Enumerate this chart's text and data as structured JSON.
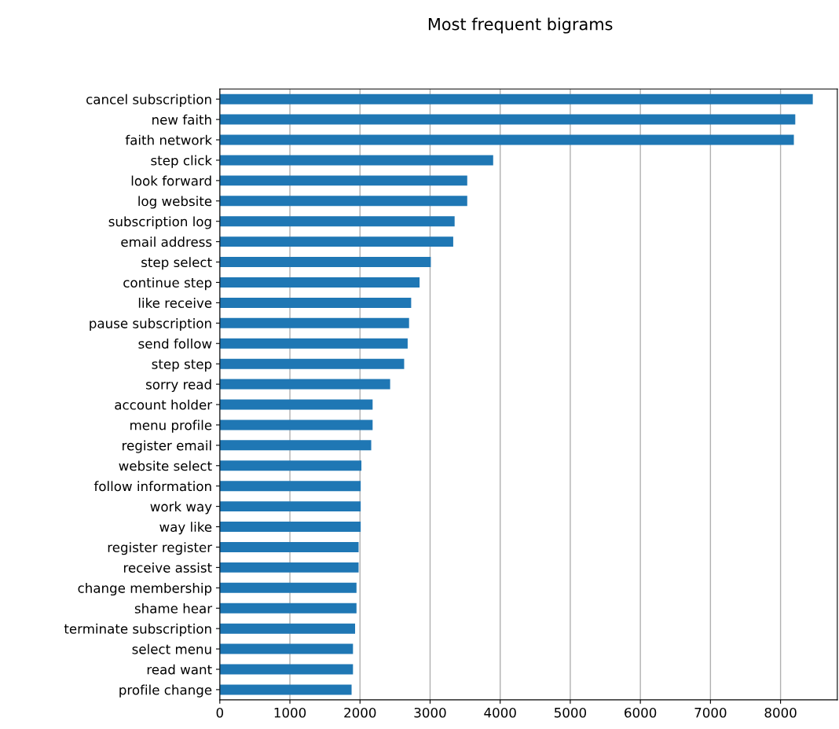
{
  "chart_data": {
    "type": "bar",
    "orientation": "horizontal",
    "title": "Most frequent bigrams",
    "categories": [
      "cancel subscription",
      "new faith",
      "faith network",
      "step click",
      "look forward",
      "log website",
      "subscription log",
      "email address",
      "step select",
      "continue step",
      "like receive",
      "pause subscription",
      "send follow",
      "step step",
      "sorry read",
      "account holder",
      "menu profile",
      "register email",
      "website select",
      "follow information",
      "work way",
      "way like",
      "register register",
      "receive assist",
      "change membership",
      "shame hear",
      "terminate subscription",
      "select menu",
      "read want",
      "profile change"
    ],
    "values": [
      8460,
      8210,
      8190,
      3900,
      3530,
      3530,
      3350,
      3330,
      3010,
      2850,
      2730,
      2700,
      2680,
      2630,
      2430,
      2180,
      2180,
      2160,
      2020,
      2010,
      2010,
      2010,
      1980,
      1980,
      1950,
      1950,
      1930,
      1900,
      1900,
      1880
    ],
    "color": "#1f77b4",
    "xlim": [
      0,
      8810
    ],
    "xticks": [
      0,
      1000,
      2000,
      3000,
      4000,
      5000,
      6000,
      7000,
      8000
    ],
    "grid": "x"
  }
}
